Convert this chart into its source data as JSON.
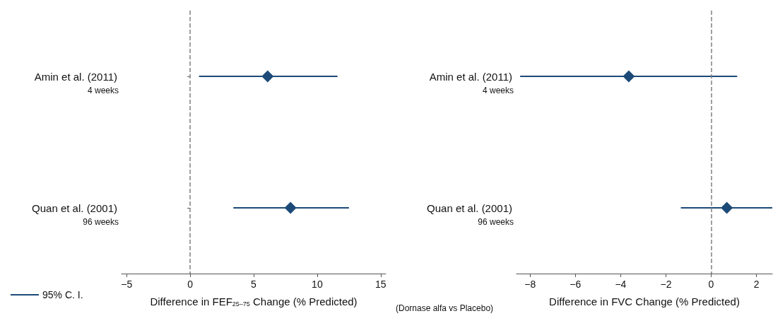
{
  "chart_data": [
    {
      "type": "scatter",
      "orientation": "horizontal",
      "marker": "diamond",
      "legend": "bottom left",
      "grid": false,
      "categories": [
        "Amin et al. (2011)",
        "Quan et al. (2001)"
      ],
      "series": [
        {
          "name": "95% C. I.",
          "color": "#1c4a78",
          "values": [
            6.1,
            7.9
          ],
          "errors": [
            [
              0.7,
              11.6
            ],
            [
              3.4,
              12.5
            ]
          ]
        }
      ],
      "xlabel": "Difference in FEF$_{25–75}$ Change (% Predicted)",
      "xlim": [
        -5.4,
        15.4
      ],
      "xticks": [
        -5,
        0,
        5,
        10,
        15
      ],
      "ref_lines": [
        {
          "axis": "x",
          "value": 0,
          "color": "#808080",
          "line_style": "dashed"
        }
      ],
      "annotations": [
        "4 weeks",
        "96 weeks"
      ]
    },
    {
      "type": "scatter",
      "orientation": "horizontal",
      "marker": "diamond",
      "grid": false,
      "categories": [
        "Amin et al. (2011)",
        "Quan et al. (2001)"
      ],
      "series": [
        {
          "color": "#1c4a78",
          "values": [
            -3.64,
            0.69
          ],
          "errors": [
            [
              -8.44,
              1.15
            ],
            [
              -1.34,
              2.7
            ]
          ]
        }
      ],
      "xlabel": "Difference in FVC Change (% Predicted)",
      "xlim": [
        -8.6,
        2.7
      ],
      "xticks": [
        -8,
        -6,
        -4,
        -2,
        0,
        2
      ],
      "ref_lines": [
        {
          "axis": "x",
          "value": 0,
          "color": "#808080",
          "line_style": "dashed"
        }
      ],
      "annotations": [
        "4 weeks",
        "96 weeks",
        "(Dornase alfa vs Placebo)"
      ]
    }
  ]
}
